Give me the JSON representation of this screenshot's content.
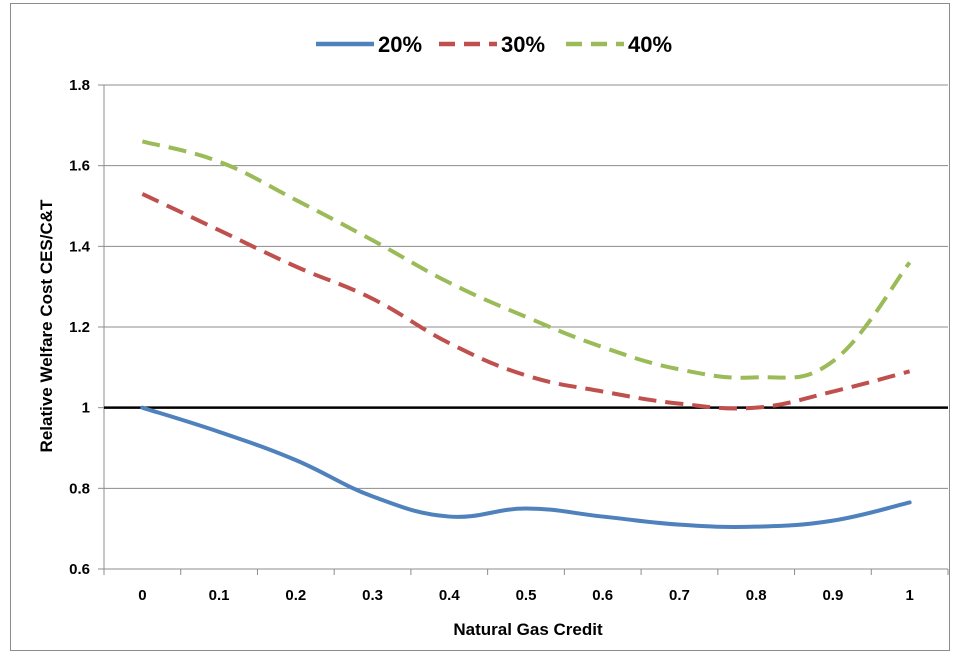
{
  "chart_data": {
    "type": "line",
    "title": "",
    "xlabel": "Natural Gas Credit",
    "ylabel": "Relative Welfare Cost CES/C&T",
    "x": [
      0,
      0.1,
      0.2,
      0.3,
      0.4,
      0.5,
      0.6,
      0.7,
      0.8,
      0.9,
      1
    ],
    "x_tick_labels": [
      "0",
      "0.1",
      "0.2",
      "0.3",
      "0.4",
      "0.5",
      "0.6",
      "0.7",
      "0.8",
      "0.9",
      "1"
    ],
    "ylim": [
      0.6,
      1.8
    ],
    "y_ticks": [
      0.6,
      0.8,
      1,
      1.2,
      1.4,
      1.6,
      1.8
    ],
    "y_tick_labels": [
      "0.6",
      "0.8",
      "1",
      "1.2",
      "1.4",
      "1.6",
      "1.8"
    ],
    "grid": true,
    "legend_position": "top",
    "reference_line": {
      "y": 1,
      "color": "#000000"
    },
    "series": [
      {
        "name": "20%",
        "color": "#4f81bd",
        "style": "solid",
        "values": [
          1.0,
          0.94,
          0.87,
          0.78,
          0.73,
          0.75,
          0.73,
          0.71,
          0.705,
          0.72,
          0.765
        ]
      },
      {
        "name": "30%",
        "color": "#c0504d",
        "style": "dashed",
        "values": [
          1.53,
          1.44,
          1.35,
          1.27,
          1.16,
          1.08,
          1.04,
          1.01,
          1.0,
          1.04,
          1.09
        ]
      },
      {
        "name": "40%",
        "color": "#9bbb59",
        "style": "dashed",
        "values": [
          1.66,
          1.61,
          1.515,
          1.415,
          1.31,
          1.225,
          1.15,
          1.095,
          1.075,
          1.115,
          1.36
        ]
      }
    ]
  }
}
